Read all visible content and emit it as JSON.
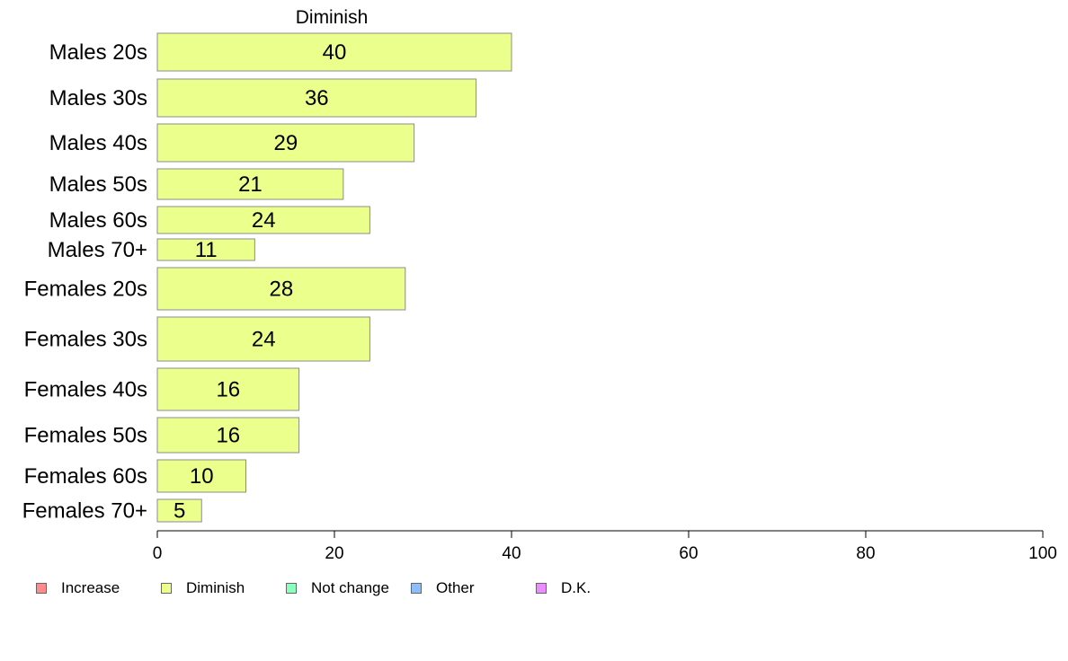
{
  "chart_data": {
    "type": "bar",
    "orientation": "horizontal",
    "title": "Diminish",
    "categories": [
      "Males 20s",
      "Males 30s",
      "Males 40s",
      "Males 50s",
      "Males 60s",
      "Males 70+",
      "Females 20s",
      "Females 30s",
      "Females 40s",
      "Females 50s",
      "Females 60s",
      "Females 70+"
    ],
    "series": [
      {
        "name": "Diminish",
        "color": "#ebff8c",
        "values": [
          40,
          36,
          29,
          21,
          24,
          11,
          28,
          24,
          16,
          16,
          10,
          5
        ]
      }
    ],
    "xlim": [
      0,
      100
    ],
    "xticks": [
      0,
      20,
      40,
      60,
      80,
      100
    ],
    "grid": false,
    "legend_position": "bottom",
    "legend": [
      {
        "label": "Increase",
        "color": "#ff8c8c"
      },
      {
        "label": "Diminish",
        "color": "#ebff8c"
      },
      {
        "label": "Not change",
        "color": "#8cffbe"
      },
      {
        "label": "Other",
        "color": "#8cbeff"
      },
      {
        "label": "D.K.",
        "color": "#eb8cff"
      }
    ]
  }
}
